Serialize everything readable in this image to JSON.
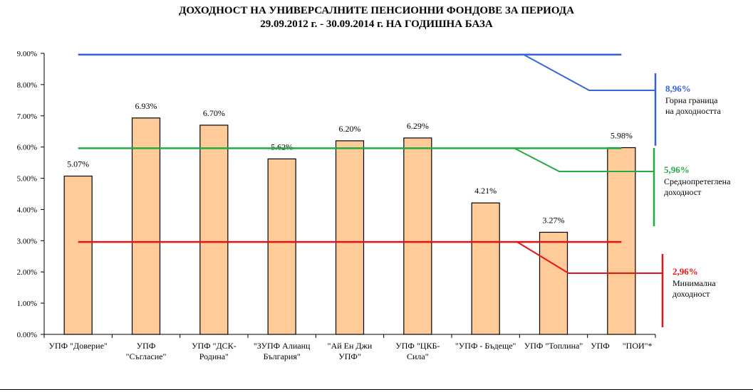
{
  "chart_data": {
    "type": "bar",
    "title": [
      "ДОХОДНОСТ НА УНИВЕРСАЛНИТЕ ПЕНСИОННИ ФОНДОВЕ ЗА ПЕРИОДА",
      "29.09.2012 г. - 30.09.2014 г. НА ГОДИШНА БАЗА"
    ],
    "categories": [
      [
        "УПФ \"Доверие\""
      ],
      [
        "УПФ",
        "\"Съгласие\""
      ],
      [
        "УПФ \"ДСК-",
        "Родина\""
      ],
      [
        "\"ЗУПФ Алианц",
        "България\""
      ],
      [
        "\"Ай Ен Джи",
        "УПФ\""
      ],
      [
        "УПФ \"ЦКБ-",
        "Сила\""
      ],
      [
        "\"УПФ - Бъдеще\""
      ],
      [
        "УПФ \"Топлина\""
      ],
      [
        "УПФ      \"ПОИ\"*"
      ]
    ],
    "values": [
      5.07,
      6.93,
      6.7,
      5.62,
      6.2,
      6.29,
      4.21,
      3.27,
      5.98
    ],
    "data_labels": [
      "5.07%",
      "6.93%",
      "6.70%",
      "5.62%",
      "6.20%",
      "6.29%",
      "4.21%",
      "3.27%",
      "5.98%"
    ],
    "ylim": [
      0,
      9
    ],
    "yticks": [
      0,
      1,
      2,
      3,
      4,
      5,
      6,
      7,
      8,
      9
    ],
    "ytick_labels": [
      "0.00%",
      "1.00%",
      "2.00%",
      "3.00%",
      "4.00%",
      "5.00%",
      "6.00%",
      "7.00%",
      "8.00%",
      "9.00%"
    ],
    "grid": false,
    "bar_color": "#FFCC99",
    "reference_lines": [
      {
        "value": 8.96,
        "value_label": "8,96%",
        "text": [
          "Горна граница",
          "на доходността"
        ],
        "color": "#3366DD"
      },
      {
        "value": 5.96,
        "value_label": "5,96%",
        "text": [
          "Среднопретеглена",
          "доходност"
        ],
        "color": "#22AA44"
      },
      {
        "value": 2.96,
        "value_label": "2,96%",
        "text": [
          "Минимална",
          "доходност"
        ],
        "color": "#EE1111"
      }
    ]
  }
}
